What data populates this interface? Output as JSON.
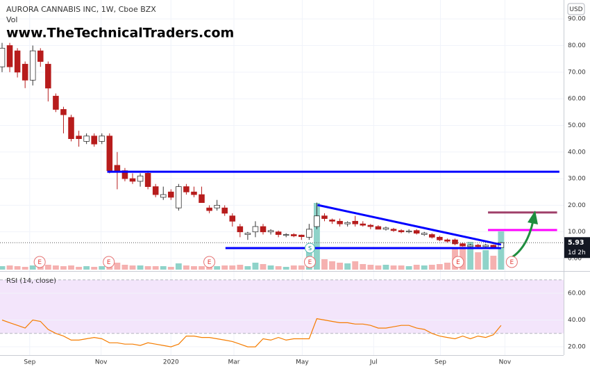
{
  "chart_data": {
    "type": "candlestick",
    "title": "AURORA CANNABIS INC, 1W, Cboe BZX",
    "subtitle": "Vol",
    "watermark": "www.TheTechnicalTraders.com",
    "currency": "USD",
    "countdown": "1d 2h",
    "xlim": [
      -0.27,
      73.15
    ],
    "xticks": [
      {
        "value": 3.6,
        "label": "Sep"
      },
      {
        "value": 12.9,
        "label": "Nov"
      },
      {
        "value": 22.0,
        "label": "2020"
      },
      {
        "value": 30.2,
        "label": "Mar"
      },
      {
        "value": 39.1,
        "label": "May"
      },
      {
        "value": 48.4,
        "label": "Jul"
      },
      {
        "value": 57.1,
        "label": "Sep"
      },
      {
        "value": 65.5,
        "label": "Nov"
      }
    ],
    "ylim": [
      -4.7,
      97.1
    ],
    "yticks": [
      {
        "value": 0,
        "label": "0.00"
      },
      {
        "value": 10,
        "label": "10.00"
      },
      {
        "value": 20,
        "label": "20.00"
      },
      {
        "value": 30,
        "label": "30.00"
      },
      {
        "value": 40,
        "label": "40.00"
      },
      {
        "value": 50,
        "label": "50.00"
      },
      {
        "value": 60,
        "label": "60.00"
      },
      {
        "value": 70,
        "label": "70.00"
      },
      {
        "value": 80,
        "label": "80.00"
      },
      {
        "value": 90,
        "label": "90.00"
      }
    ],
    "grid": true,
    "up_color": "#ffffff",
    "down_color": "#b71c1c",
    "open": [
      72,
      80,
      78,
      73,
      67,
      78,
      73,
      61,
      56,
      53,
      46,
      44,
      46,
      44,
      46,
      35,
      33,
      30,
      29,
      32,
      27,
      23,
      25,
      19,
      27,
      25,
      24,
      19,
      19,
      19,
      16,
      12,
      9,
      10,
      12,
      10,
      10,
      8.7,
      9,
      8.8,
      8,
      12,
      16,
      14.5,
      14,
      13,
      14,
      13,
      12.5,
      12,
      11,
      11,
      10.5,
      10,
      10.5,
      9,
      9,
      8,
      7,
      7,
      5.5,
      4.5,
      5,
      4.5,
      5,
      4.1
    ],
    "high": [
      81,
      81,
      79,
      74,
      80,
      79,
      74,
      62,
      57,
      54,
      48,
      47,
      47,
      47,
      47,
      40,
      34,
      32,
      32,
      33,
      28,
      27,
      26,
      28,
      28,
      27,
      27,
      20,
      22,
      20,
      17,
      13,
      10,
      14,
      13,
      11,
      10.5,
      9.5,
      9.5,
      9,
      13,
      21,
      17,
      15,
      15,
      14,
      16,
      14,
      13,
      12.5,
      12,
      11.5,
      11,
      11,
      11,
      10,
      9.5,
      8.5,
      7.5,
      7.5,
      6,
      5.5,
      5.5,
      5.5,
      5.2,
      6.2
    ],
    "low": [
      70,
      70,
      68,
      64,
      65,
      72,
      59,
      55,
      47,
      44,
      42,
      43,
      42,
      43,
      32,
      26,
      29,
      28,
      27,
      26,
      23,
      22,
      22,
      18,
      24,
      23,
      21,
      17,
      18,
      16,
      12,
      8,
      7,
      8,
      9,
      9,
      8,
      8,
      8,
      7,
      7,
      11,
      14,
      13,
      12,
      12,
      12,
      12,
      11,
      11,
      10.5,
      10,
      9.5,
      9.5,
      9,
      8.5,
      7.5,
      6.5,
      6,
      5,
      4.5,
      4.3,
      4.2,
      4.3,
      3.9,
      4
    ],
    "close": [
      79,
      72,
      70,
      67,
      78,
      74,
      64,
      56,
      54,
      45,
      45,
      46,
      43,
      46,
      33,
      33,
      30,
      29,
      31,
      27,
      24,
      24,
      23,
      27,
      25,
      24,
      21,
      18,
      20,
      17,
      14,
      10,
      9.5,
      12,
      10,
      10.5,
      9,
      9,
      8.5,
      8.2,
      11,
      16,
      15,
      14,
      13,
      13.5,
      13,
      12.5,
      12,
      11,
      11.5,
      10.5,
      10,
      10.3,
      9.5,
      9.5,
      8,
      7,
      6.5,
      5.5,
      4.8,
      5,
      4.5,
      5,
      4.1,
      5.93
    ],
    "volume": [
      5,
      6,
      5,
      4,
      6,
      5,
      7,
      6,
      5,
      6,
      4,
      5,
      4,
      5,
      8,
      10,
      7,
      6,
      6,
      5,
      5,
      5,
      4,
      9,
      6,
      5,
      5,
      4,
      5,
      6,
      6,
      7,
      5,
      10,
      8,
      6,
      5,
      4,
      6,
      6,
      30,
      96,
      15,
      12,
      10,
      9,
      12,
      8,
      7,
      6,
      7,
      6,
      6,
      5,
      7,
      6,
      7,
      8,
      10,
      30,
      38,
      40,
      25,
      28,
      20,
      55
    ],
    "vlim": [
      0,
      100
    ],
    "vol_up_color": "#8fd3c9",
    "vol_down_color": "#f5b1b0",
    "lines": [
      {
        "x": [
          13.7,
          72.6
        ],
        "y": [
          32.6,
          32.6
        ],
        "color": "#0000ff"
      },
      {
        "x": [
          29.1,
          65.0
        ],
        "y": [
          3.9,
          3.9
        ],
        "color": "#0000ff"
      },
      {
        "x": [
          41.1,
          65.0
        ],
        "y": [
          20.1,
          5.2
        ],
        "color": "#0000ff"
      },
      {
        "x": [
          63.3,
          72.3
        ],
        "y": [
          10.7,
          10.7
        ],
        "color": "#ff00ff"
      },
      {
        "x": [
          63.3,
          72.3
        ],
        "y": [
          17.3,
          17.3
        ],
        "color": "#a0406a"
      }
    ],
    "events": [
      {
        "x": 4.9,
        "label": "E"
      },
      {
        "x": 13.9,
        "label": "E"
      },
      {
        "x": 27.0,
        "label": "E"
      },
      {
        "x": 40.1,
        "label": "E"
      },
      {
        "x": 59.4,
        "label": "E"
      },
      {
        "x": 66.4,
        "label": "E"
      }
    ],
    "split": {
      "x": 40.1,
      "label": "S"
    },
    "rsi": {
      "title": "RSI (14, close)",
      "color": "#f57c00",
      "values": [
        40,
        38,
        36,
        34,
        40,
        39,
        33,
        30,
        28,
        25,
        25,
        26,
        27,
        26,
        23,
        23,
        22,
        22,
        21,
        23,
        22,
        21,
        20,
        22,
        28,
        28,
        27,
        27,
        26,
        25,
        24,
        22,
        20,
        20,
        26,
        25,
        27,
        25,
        26,
        26,
        26,
        41,
        40,
        39,
        38,
        38,
        37,
        37,
        36,
        34,
        34,
        35,
        36,
        36,
        34,
        33,
        30,
        28,
        27,
        26,
        28,
        26,
        28,
        27,
        29,
        36
      ],
      "ylim": [
        13.8,
        76.1
      ],
      "yticks": [
        {
          "value": 20,
          "label": "20.00"
        },
        {
          "value": 40,
          "label": "40.00"
        },
        {
          "value": 60,
          "label": "60.00"
        }
      ],
      "band": [
        30,
        70
      ],
      "band_color": "#f3e5fb"
    }
  }
}
